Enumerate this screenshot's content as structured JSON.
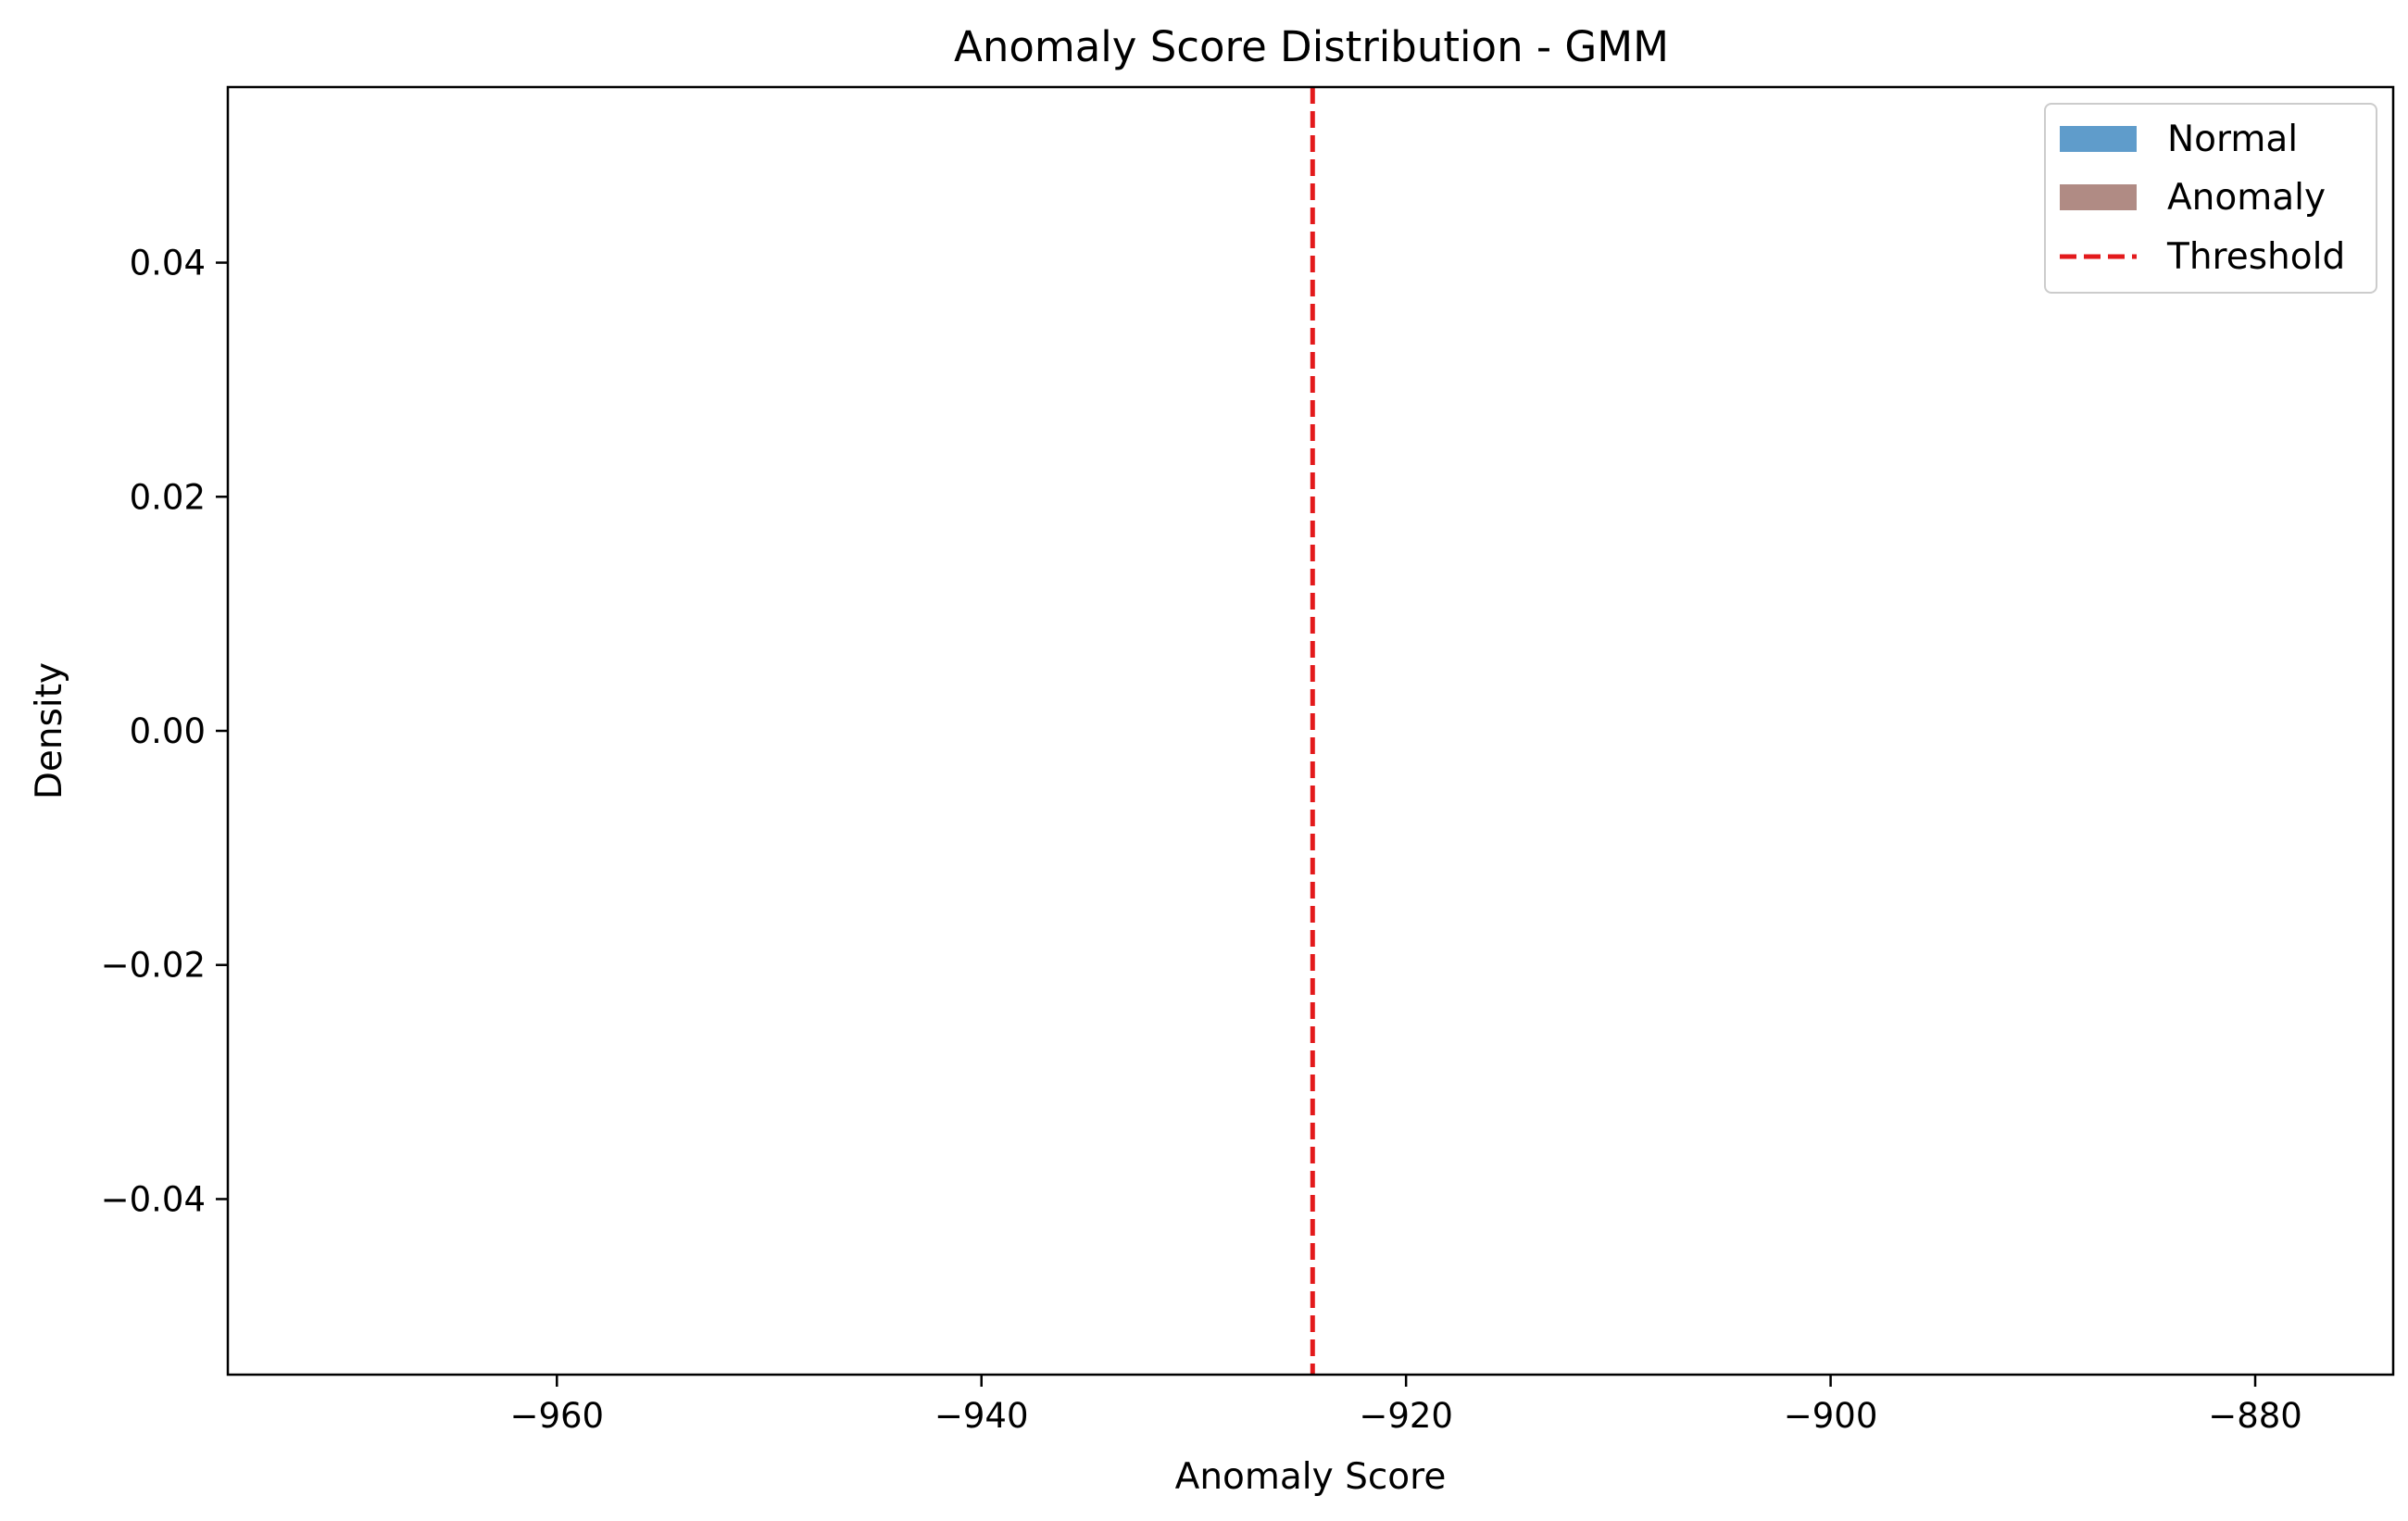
{
  "chart_data": {
    "type": "histogram",
    "title": "Anomaly Score Distribution - GMM",
    "xlabel": "Anomaly Score",
    "ylabel": "Density",
    "xlim": [
      -975.5,
      -873.5
    ],
    "ylim": [
      -0.055,
      0.055
    ],
    "x_ticks": [
      -960,
      -940,
      -920,
      -900,
      -880
    ],
    "x_tick_labels": [
      "−960",
      "−940",
      "−920",
      "−900",
      "−880"
    ],
    "y_ticks": [
      -0.04,
      -0.02,
      0.0,
      0.02,
      0.04
    ],
    "y_tick_labels": [
      "−0.04",
      "−0.02",
      "0.00",
      "0.02",
      "0.04"
    ],
    "grid": false,
    "legend_position": "top-right",
    "series": [
      {
        "name": "Normal",
        "kind": "histogram",
        "color": "#5f9ccb",
        "values": []
      },
      {
        "name": "Anomaly",
        "kind": "histogram",
        "color": "#b08b84",
        "values": []
      }
    ],
    "threshold": {
      "name": "Threshold",
      "x": -924.4,
      "color": "#e31a1c",
      "style": "dashed"
    }
  }
}
